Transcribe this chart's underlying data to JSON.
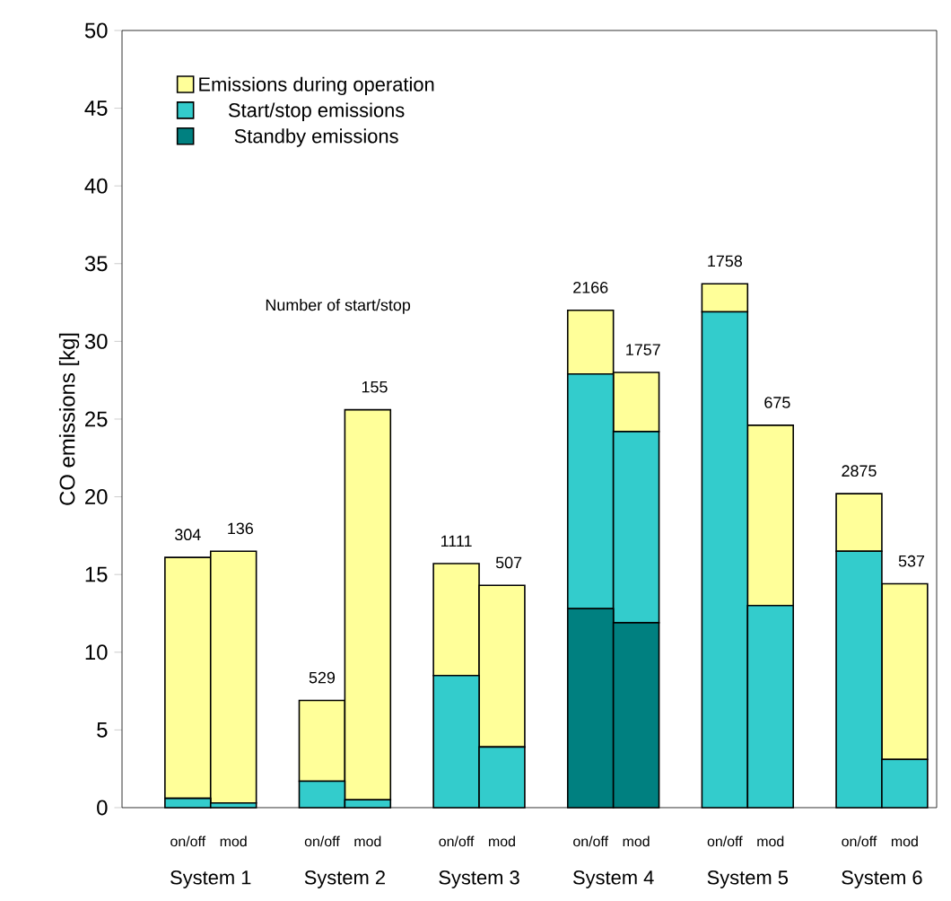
{
  "chart_data": {
    "type": "bar",
    "stacked": true,
    "ylabel": "CO emissions [kg]",
    "categories": [
      "on/off",
      "mod",
      "on/off",
      "mod",
      "on/off",
      "mod",
      "on/off",
      "mod",
      "on/off",
      "mod",
      "on/off",
      "mod"
    ],
    "series": [
      {
        "name": "Standby emissions",
        "color": "#008080",
        "values": [
          0,
          0,
          0,
          0,
          0,
          0,
          12.8,
          11.9,
          0,
          0,
          0,
          0
        ]
      },
      {
        "name": "Start/stop emissions",
        "color": "#33cccc",
        "values": [
          0.6,
          0.3,
          1.7,
          0.5,
          8.5,
          3.9,
          15.1,
          12.3,
          31.9,
          13.0,
          16.5,
          3.1
        ]
      },
      {
        "name": "Emissions during operation",
        "color": "#ffff99",
        "values": [
          15.5,
          16.2,
          5.2,
          25.1,
          7.2,
          10.4,
          4.1,
          3.8,
          1.8,
          11.6,
          3.7,
          11.3
        ]
      }
    ],
    "ylim": [
      0,
      50
    ],
    "yticks": [
      0,
      5,
      10,
      15,
      20,
      25,
      30,
      35,
      40,
      45,
      50
    ],
    "legend": "top left",
    "annotations": [
      "Number of start/stop",
      "304",
      "136",
      "529",
      "155",
      "1111",
      "507",
      "2166",
      "1757",
      "1758",
      "675",
      "2875",
      "537",
      "System 1",
      "System 2",
      "System 3",
      "System 4",
      "System 5",
      "System 6"
    ]
  }
}
